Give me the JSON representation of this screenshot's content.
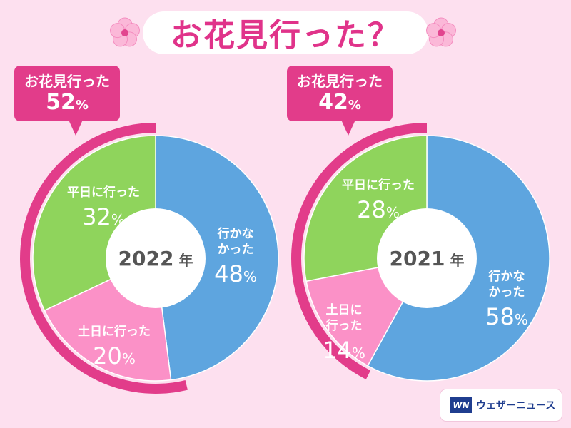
{
  "title": "お花見行った？",
  "colors": {
    "went_weekday": "#8fd45c",
    "went_weekend": "#fb91c7",
    "did_not_go": "#5ea5df",
    "accent": "#e23c8a"
  },
  "charts": [
    {
      "callout": {
        "label": "お花見行った",
        "value": "52",
        "unit": "%"
      },
      "center": {
        "year": "2022",
        "unit": "年"
      },
      "labels": {
        "did_not_go": [
          "行かな",
          "かった"
        ],
        "weekday": [
          "平日に行った"
        ],
        "weekend": [
          "土日に行った"
        ]
      }
    },
    {
      "callout": {
        "label": "お花見行った",
        "value": "42",
        "unit": "%"
      },
      "center": {
        "year": "2021",
        "unit": "年"
      },
      "labels": {
        "did_not_go": [
          "行かな",
          "かった"
        ],
        "weekday": [
          "平日に行った"
        ],
        "weekend": [
          "土日に",
          "行った"
        ]
      }
    }
  ],
  "chart_data": [
    {
      "type": "pie",
      "title": "2022 年",
      "slices": [
        {
          "label": "行かなかった",
          "value": 48,
          "color": "#5ea5df"
        },
        {
          "label": "土日に行った",
          "value": 20,
          "color": "#fb91c7"
        },
        {
          "label": "平日に行った",
          "value": 32,
          "color": "#8fd45c"
        }
      ],
      "annotation": {
        "label": "お花見行った",
        "value": 52
      }
    },
    {
      "type": "pie",
      "title": "2021 年",
      "slices": [
        {
          "label": "行かなかった",
          "value": 58,
          "color": "#5ea5df"
        },
        {
          "label": "土日に行った",
          "value": 14,
          "color": "#fb91c7"
        },
        {
          "label": "平日に行った",
          "value": 28,
          "color": "#8fd45c"
        }
      ],
      "annotation": {
        "label": "お花見行った",
        "value": 42
      }
    }
  ],
  "logo": {
    "mark": "WN",
    "text": "ウェザーニュース"
  }
}
